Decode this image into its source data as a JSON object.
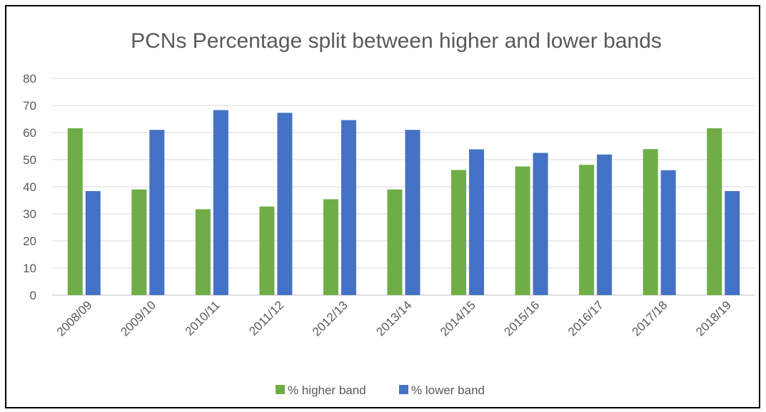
{
  "chart_data": {
    "type": "bar",
    "title": "PCNs Percentage split between higher and lower bands",
    "xlabel": "",
    "ylabel": "",
    "categories": [
      "2008/09",
      "2009/10",
      "2010/11",
      "2011/12",
      "2012/13",
      "2013/14",
      "2014/15",
      "2015/16",
      "2016/17",
      "2017/18",
      "2018/19"
    ],
    "series": [
      {
        "name": "% higher band",
        "color": "#70ad47",
        "values": [
          61.6,
          39.0,
          31.7,
          32.7,
          35.4,
          39.0,
          46.2,
          47.5,
          48.1,
          53.9,
          61.6
        ]
      },
      {
        "name": "% lower band",
        "color": "#4472c4",
        "values": [
          38.4,
          61.0,
          68.3,
          67.3,
          64.6,
          61.0,
          53.8,
          52.5,
          51.9,
          46.1,
          38.4
        ]
      }
    ],
    "ylim": [
      0,
      80
    ],
    "yticks": [
      0,
      10,
      20,
      30,
      40,
      50,
      60,
      70,
      80
    ],
    "grid": true,
    "legend_position": "bottom",
    "gridline_color": "#d9d9d9",
    "axis_color": "#bfbfbf"
  }
}
